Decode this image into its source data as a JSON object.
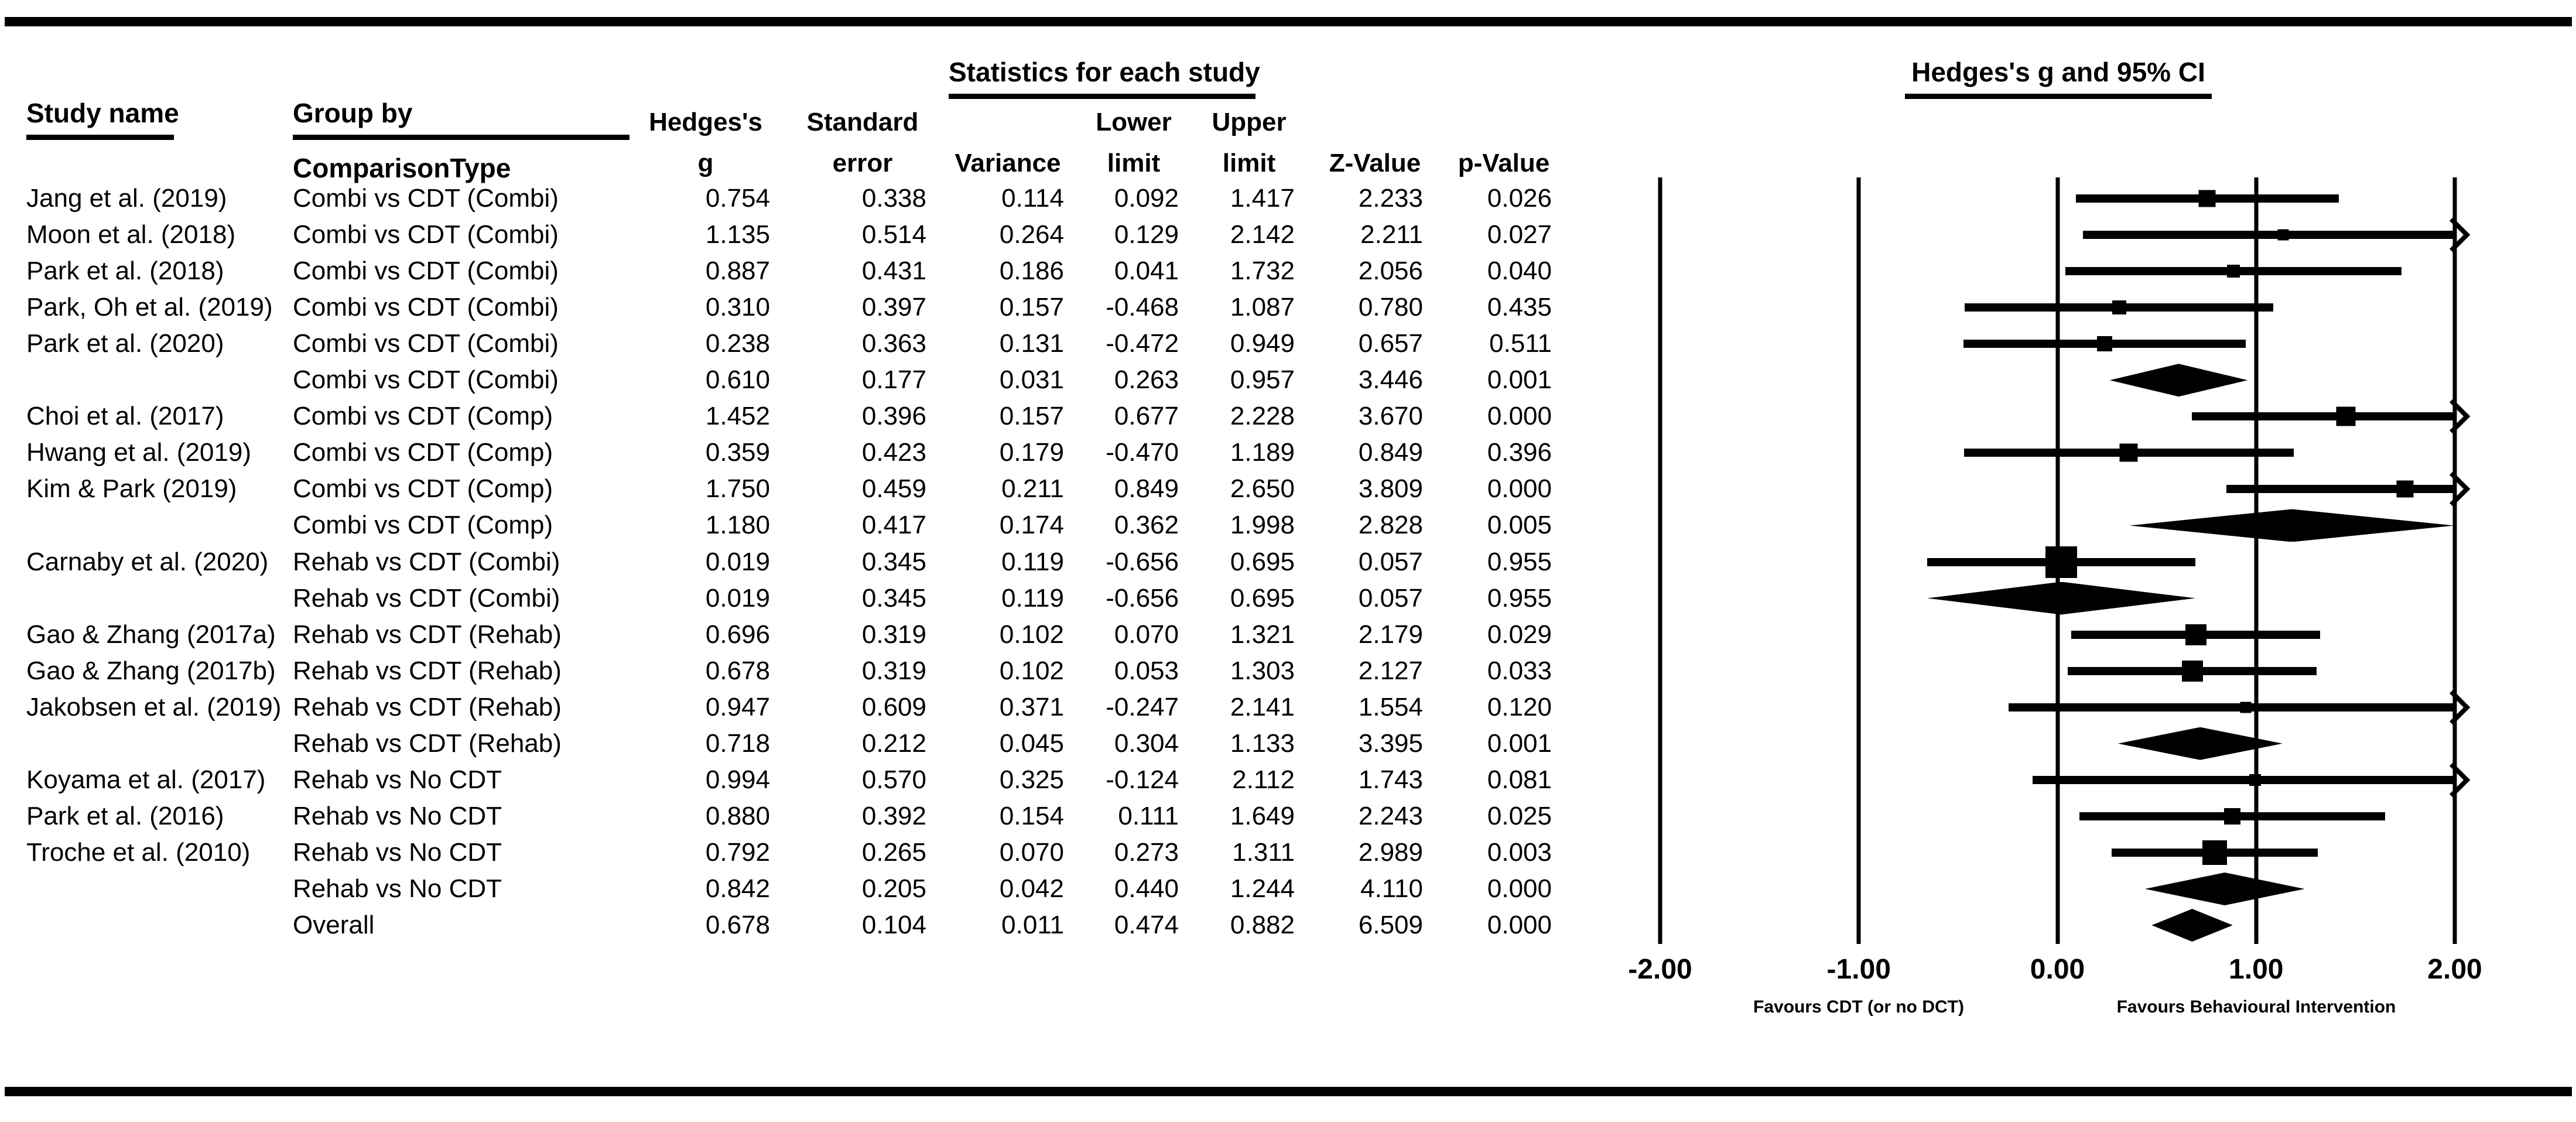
{
  "header": {
    "study_col": "Study name",
    "group_col_line1": "Group by",
    "group_col_line2": "ComparisonType",
    "stats_title": "Statistics for each study",
    "plot_title": "Hedges's g and 95% CI"
  },
  "columns": [
    {
      "line1": "Hedges's",
      "line2": "g"
    },
    {
      "line1": "Standard",
      "line2": "error"
    },
    {
      "line1": "",
      "line2": "Variance"
    },
    {
      "line1": "Lower",
      "line2": "limit"
    },
    {
      "line1": "Upper",
      "line2": "limit"
    },
    {
      "line1": "",
      "line2": "Z-Value"
    },
    {
      "line1": "",
      "line2": "p-Value"
    }
  ],
  "axis": {
    "tick_labels": [
      "-2.00",
      "-1.00",
      "0.00",
      "1.00",
      "2.00"
    ],
    "tick_values": [
      -2,
      -1,
      0,
      1,
      2
    ],
    "xmin": -2,
    "xmax": 2
  },
  "footnotes": {
    "left": "Favours CDT (or no DCT)",
    "right": "Favours Behavioural Intervention"
  },
  "colors": {
    "ink": "#000000",
    "background": "#ffffff"
  },
  "chart_data": {
    "type": "forest",
    "effect_label": "Hedges's g",
    "xlim": [
      -2,
      2
    ],
    "ticks": [
      -2,
      -1,
      0,
      1,
      2
    ],
    "legend_left": "Favours CDT (or no DCT)",
    "legend_right": "Favours Behavioural Intervention",
    "rows": [
      {
        "study": "Jang et al. (2019)",
        "group": "Combi vs CDT (Combi)",
        "g": "0.754",
        "se": "0.338",
        "var": "0.114",
        "ll": "0.092",
        "ul": "1.417",
        "z": "2.233",
        "p": "0.026",
        "kind": "study",
        "size": 29,
        "arrow": false
      },
      {
        "study": "Moon et al. (2018)",
        "group": "Combi vs CDT (Combi)",
        "g": "1.135",
        "se": "0.514",
        "var": "0.264",
        "ll": "0.129",
        "ul": "2.142",
        "z": "2.211",
        "p": "0.027",
        "kind": "study",
        "size": 19,
        "arrow": true
      },
      {
        "study": "Park et al. (2018)",
        "group": "Combi vs CDT (Combi)",
        "g": "0.887",
        "se": "0.431",
        "var": "0.186",
        "ll": "0.041",
        "ul": "1.732",
        "z": "2.056",
        "p": "0.040",
        "kind": "study",
        "size": 22,
        "arrow": false
      },
      {
        "study": "Park, Oh et al. (2019)",
        "group": "Combi vs CDT (Combi)",
        "g": "0.310",
        "se": "0.397",
        "var": "0.157",
        "ll": "-0.468",
        "ul": "1.087",
        "z": "0.780",
        "p": "0.435",
        "kind": "study",
        "size": 24,
        "arrow": false
      },
      {
        "study": "Park et al. (2020)",
        "group": "Combi vs CDT (Combi)",
        "g": "0.238",
        "se": "0.363",
        "var": "0.131",
        "ll": "-0.472",
        "ul": "0.949",
        "z": "0.657",
        "p": "0.511",
        "kind": "study",
        "size": 26,
        "arrow": false
      },
      {
        "study": "",
        "group": "Combi vs CDT (Combi)",
        "g": "0.610",
        "se": "0.177",
        "var": "0.031",
        "ll": "0.263",
        "ul": "0.957",
        "z": "3.446",
        "p": "0.001",
        "kind": "summary",
        "size": 0,
        "arrow": false
      },
      {
        "study": "Choi et al. (2017)",
        "group": "Combi vs CDT (Comp)",
        "g": "1.452",
        "se": "0.396",
        "var": "0.157",
        "ll": "0.677",
        "ul": "2.228",
        "z": "3.670",
        "p": "0.000",
        "kind": "study",
        "size": 33,
        "arrow": true
      },
      {
        "study": "Hwang et al. (2019)",
        "group": "Combi vs CDT (Comp)",
        "g": "0.359",
        "se": "0.423",
        "var": "0.179",
        "ll": "-0.470",
        "ul": "1.189",
        "z": "0.849",
        "p": "0.396",
        "kind": "study",
        "size": 31,
        "arrow": false
      },
      {
        "study": "Kim & Park (2019)",
        "group": "Combi vs CDT (Comp)",
        "g": "1.750",
        "se": "0.459",
        "var": "0.211",
        "ll": "0.849",
        "ul": "2.650",
        "z": "3.809",
        "p": "0.000",
        "kind": "study",
        "size": 29,
        "arrow": true
      },
      {
        "study": "",
        "group": "Combi vs CDT (Comp)",
        "g": "1.180",
        "se": "0.417",
        "var": "0.174",
        "ll": "0.362",
        "ul": "1.998",
        "z": "2.828",
        "p": "0.005",
        "kind": "summary",
        "size": 0,
        "arrow": false
      },
      {
        "study": "Carnaby et al. (2020)",
        "group": "Rehab vs CDT (Combi)",
        "g": "0.019",
        "se": "0.345",
        "var": "0.119",
        "ll": "-0.656",
        "ul": "0.695",
        "z": "0.057",
        "p": "0.955",
        "kind": "study",
        "size": 54,
        "arrow": false
      },
      {
        "study": "",
        "group": "Rehab vs CDT (Combi)",
        "g": "0.019",
        "se": "0.345",
        "var": "0.119",
        "ll": "-0.656",
        "ul": "0.695",
        "z": "0.057",
        "p": "0.955",
        "kind": "summary",
        "size": 0,
        "arrow": false
      },
      {
        "study": "Gao & Zhang (2017a)",
        "group": "Rehab vs CDT (Rehab)",
        "g": "0.696",
        "se": "0.319",
        "var": "0.102",
        "ll": "0.070",
        "ul": "1.321",
        "z": "2.179",
        "p": "0.029",
        "kind": "study",
        "size": 36,
        "arrow": false
      },
      {
        "study": "Gao & Zhang (2017b)",
        "group": "Rehab vs CDT (Rehab)",
        "g": "0.678",
        "se": "0.319",
        "var": "0.102",
        "ll": "0.053",
        "ul": "1.303",
        "z": "2.127",
        "p": "0.033",
        "kind": "study",
        "size": 36,
        "arrow": false
      },
      {
        "study": "Jakobsen et al. (2019)",
        "group": "Rehab vs CDT (Rehab)",
        "g": "0.947",
        "se": "0.609",
        "var": "0.371",
        "ll": "-0.247",
        "ul": "2.141",
        "z": "1.554",
        "p": "0.120",
        "kind": "study",
        "size": 19,
        "arrow": true
      },
      {
        "study": "",
        "group": "Rehab vs CDT (Rehab)",
        "g": "0.718",
        "se": "0.212",
        "var": "0.045",
        "ll": "0.304",
        "ul": "1.133",
        "z": "3.395",
        "p": "0.001",
        "kind": "summary",
        "size": 0,
        "arrow": false
      },
      {
        "study": "Koyama et al. (2017)",
        "group": "Rehab vs No CDT",
        "g": "0.994",
        "se": "0.570",
        "var": "0.325",
        "ll": "-0.124",
        "ul": "2.112",
        "z": "1.743",
        "p": "0.081",
        "kind": "study",
        "size": 20,
        "arrow": true
      },
      {
        "study": "Park et al. (2016)",
        "group": "Rehab vs No CDT",
        "g": "0.880",
        "se": "0.392",
        "var": "0.154",
        "ll": "0.111",
        "ul": "1.649",
        "z": "2.243",
        "p": "0.025",
        "kind": "study",
        "size": 28,
        "arrow": false
      },
      {
        "study": "Troche et al. (2010)",
        "group": "Rehab vs No CDT",
        "g": "0.792",
        "se": "0.265",
        "var": "0.070",
        "ll": "0.273",
        "ul": "1.311",
        "z": "2.989",
        "p": "0.003",
        "kind": "study",
        "size": 42,
        "arrow": false
      },
      {
        "study": "",
        "group": "Rehab vs No CDT",
        "g": "0.842",
        "se": "0.205",
        "var": "0.042",
        "ll": "0.440",
        "ul": "1.244",
        "z": "4.110",
        "p": "0.000",
        "kind": "summary",
        "size": 0,
        "arrow": false
      },
      {
        "study": "",
        "group": "Overall",
        "g": "0.678",
        "se": "0.104",
        "var": "0.011",
        "ll": "0.474",
        "ul": "0.882",
        "z": "6.509",
        "p": "0.000",
        "kind": "summary",
        "size": 0,
        "arrow": false
      }
    ]
  }
}
